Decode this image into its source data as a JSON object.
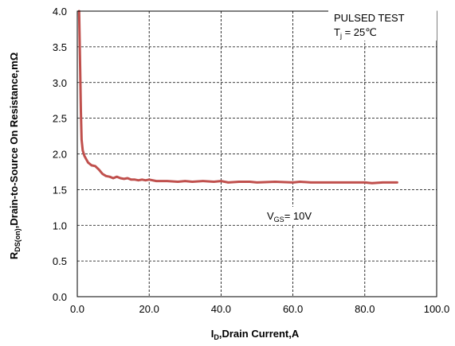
{
  "chart_data": {
    "type": "line",
    "xlim": [
      0,
      100
    ],
    "ylim": [
      0,
      4.0
    ],
    "grid": true,
    "grid_style": "dashed",
    "series_color": "#c0504d",
    "x_ticks": [
      "0.0",
      "20.0",
      "40.0",
      "60.0",
      "80.0",
      "100.0"
    ],
    "y_ticks": [
      "0.0",
      "0.5",
      "1.0",
      "1.5",
      "2.0",
      "2.5",
      "3.0",
      "3.5",
      "4.0"
    ],
    "xlabel": {
      "main": "I",
      "sub": "D",
      "rest": ",Drain Current,A"
    },
    "ylabel": {
      "main": "R",
      "sub": "DS(on)",
      "rest": ",Drain-to-Source On Resistance,mΩ"
    },
    "annotations": {
      "pulsed": "PULSED TEST",
      "tj_main": "T",
      "tj_sub": "j",
      "tj_rest": " = 25℃",
      "vgs_main": "V",
      "vgs_sub": "GS",
      "vgs_rest": "= 10V"
    },
    "series": [
      {
        "x": [
          0.5,
          0.8,
          1.0,
          1.2,
          1.5,
          2,
          3,
          4,
          5,
          6,
          7,
          8,
          9,
          10,
          11,
          12,
          13,
          14,
          15,
          16,
          17,
          18,
          19,
          20,
          22,
          25,
          28,
          30,
          32,
          35,
          38,
          40,
          42,
          45,
          48,
          50,
          55,
          60,
          62,
          65,
          68,
          70,
          75,
          80,
          82,
          85,
          89
        ],
        "y": [
          4.0,
          3.2,
          2.6,
          2.2,
          2.05,
          1.97,
          1.88,
          1.84,
          1.83,
          1.78,
          1.72,
          1.69,
          1.68,
          1.66,
          1.68,
          1.66,
          1.65,
          1.66,
          1.64,
          1.64,
          1.63,
          1.64,
          1.63,
          1.64,
          1.62,
          1.62,
          1.61,
          1.62,
          1.61,
          1.62,
          1.61,
          1.62,
          1.6,
          1.61,
          1.61,
          1.6,
          1.61,
          1.6,
          1.61,
          1.6,
          1.6,
          1.6,
          1.6,
          1.6,
          1.59,
          1.6,
          1.6
        ]
      }
    ]
  }
}
